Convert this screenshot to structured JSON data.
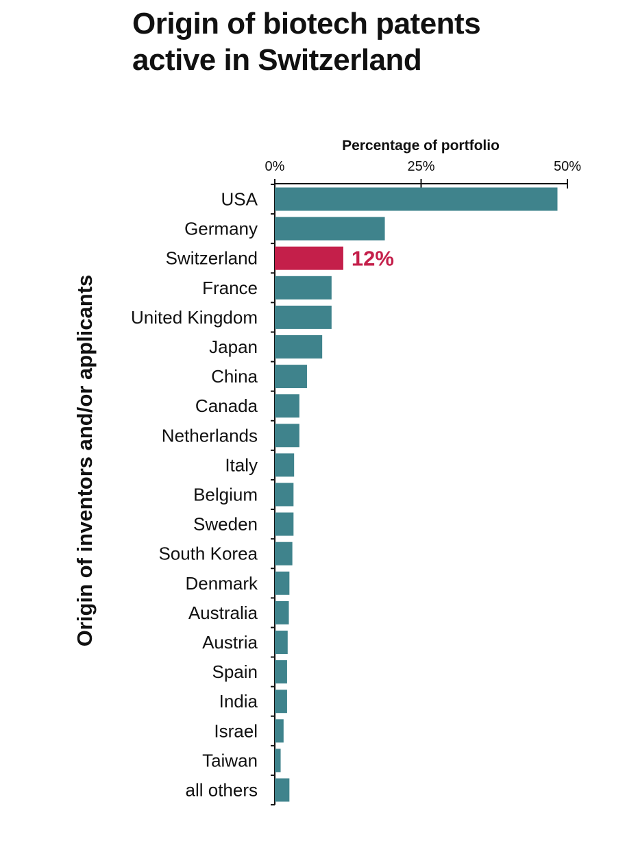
{
  "title_lines": [
    "Origin of biotech patents",
    "active in Switzerland"
  ],
  "chart_data": {
    "type": "bar",
    "orientation": "horizontal",
    "title": "Origin of biotech patents active in Switzerland",
    "xlabel": "Percentage of portfolio",
    "ylabel": "Origin of inventors and/or applicants",
    "xlim": [
      0,
      50
    ],
    "xticks": [
      0,
      25,
      50
    ],
    "xtick_labels": [
      "0%",
      "25%",
      "50%"
    ],
    "categories": [
      "USA",
      "Germany",
      "Switzerland",
      "France",
      "United Kingdom",
      "Japan",
      "China",
      "Canada",
      "Netherlands",
      "Italy",
      "Belgium",
      "Sweden",
      "South Korea",
      "Denmark",
      "Australia",
      "Austria",
      "Spain",
      "India",
      "Israel",
      "Taiwan",
      "all others"
    ],
    "values": [
      48.3,
      18.8,
      11.7,
      9.7,
      9.7,
      8.1,
      5.5,
      4.2,
      4.2,
      3.3,
      3.2,
      3.2,
      3.0,
      2.5,
      2.4,
      2.2,
      2.1,
      2.1,
      1.5,
      1.0,
      2.5
    ],
    "highlight": {
      "category": "Switzerland",
      "label": "12%"
    },
    "colors": {
      "bar": "#3f838c",
      "highlight": "#c41f4a",
      "axis": "#111111"
    }
  }
}
